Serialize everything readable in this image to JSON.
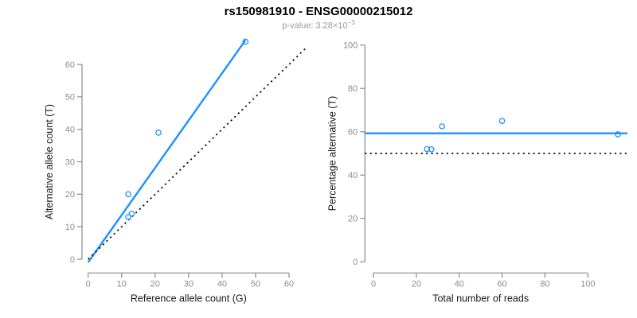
{
  "header": {
    "title": "rs150981910 - ENSG00000215012",
    "subtitle_prefix": "p-value: 3.28×10",
    "subtitle_exponent": "−3"
  },
  "colors": {
    "accent_blue": "#1E90FF",
    "reference_black": "#111111",
    "axis_gray": "#8a8a8a",
    "tick_label_gray": "#8c8c8c",
    "subtitle_gray": "#9b9b9b"
  },
  "chart_data": [
    {
      "type": "scatter",
      "xlabel": "Reference allele count (G)",
      "ylabel": "Alternative allele count (T)",
      "xlim": [
        0,
        60
      ],
      "ylim": [
        0,
        60
      ],
      "xticks": [
        0,
        10,
        20,
        30,
        40,
        50,
        60
      ],
      "yticks": [
        0,
        10,
        20,
        30,
        40,
        50,
        60
      ],
      "grid": false,
      "legend": false,
      "points": [
        [
          12,
          20
        ],
        [
          12,
          13
        ],
        [
          13,
          14
        ],
        [
          21,
          39
        ],
        [
          47,
          67
        ]
      ],
      "fit_line": {
        "style": "solid",
        "color_key": "accent_blue",
        "slope": 1.46,
        "x1": 0,
        "y1": -1,
        "x2": 47,
        "y2": 67.5
      },
      "identity_line": {
        "style": "dotted",
        "color_key": "reference_black",
        "x1": 0,
        "y1": 0,
        "x2": 65.5,
        "y2": 65.5
      }
    },
    {
      "type": "scatter",
      "xlabel": "Total number of reads",
      "ylabel": "Percentage alternative (T)",
      "xlim": [
        0,
        100
      ],
      "ylim": [
        0,
        100
      ],
      "xticks": [
        0,
        20,
        40,
        60,
        80,
        100
      ],
      "yticks": [
        0,
        20,
        40,
        60,
        80,
        100
      ],
      "grid": false,
      "legend": false,
      "points": [
        [
          25,
          52
        ],
        [
          27,
          51.9
        ],
        [
          32,
          62.5
        ],
        [
          60,
          65
        ],
        [
          114,
          58.8
        ]
      ],
      "mean_line": {
        "style": "solid",
        "color_key": "accent_blue",
        "y": 59.3
      },
      "reference_line": {
        "style": "dotted",
        "color_key": "reference_black",
        "y": 50
      }
    }
  ]
}
